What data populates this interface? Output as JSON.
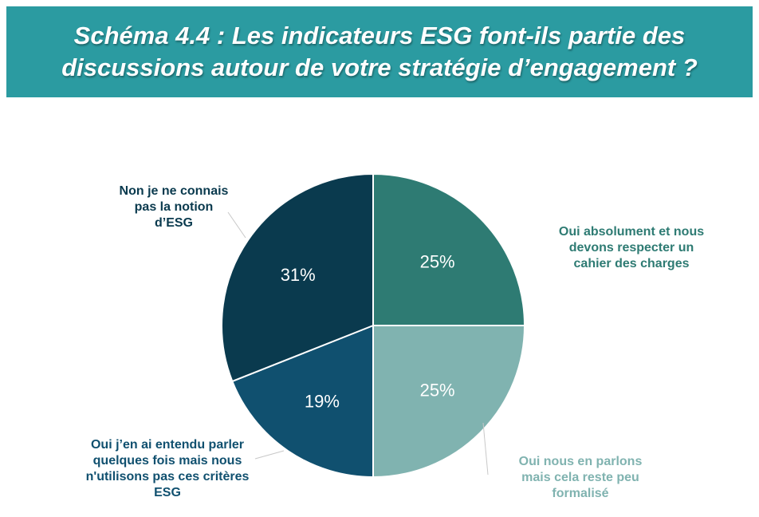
{
  "header": {
    "title_line_1": "Schéma 4.4 : Les indicateurs ESG font-ils partie des",
    "title_line_2": "discussions autour de votre stratégie d’engagement ?",
    "background_color": "#2b9ba1"
  },
  "chart_data": {
    "type": "pie",
    "title": "Schéma 4.4 : Les indicateurs ESG font-ils partie des discussions autour de votre stratégie d’engagement ?",
    "start": "12 o'clock",
    "direction": "clockwise",
    "slices": [
      {
        "label_lines": [
          "Oui absolument et nous",
          "devons respecter un",
          "cahier des charges"
        ],
        "value": 25,
        "value_label": "25%",
        "color": "#2e7b73",
        "label_color": "#2e7b73"
      },
      {
        "label_lines": [
          "Oui nous en parlons",
          "mais cela reste peu",
          "formalisé"
        ],
        "value": 25,
        "value_label": "25%",
        "color": "#80b3b0",
        "label_color": "#80b3b0"
      },
      {
        "label_lines": [
          "Oui j’en ai entendu parler",
          "quelques fois mais nous",
          "n'utilisons pas ces critères",
          "ESG"
        ],
        "value": 19,
        "value_label": "19%",
        "color": "#10506f",
        "label_color": "#10506f"
      },
      {
        "label_lines": [
          "Non je ne connais",
          "pas la notion",
          "d’ESG"
        ],
        "value": 31,
        "value_label": "31%",
        "color": "#0a3a4e",
        "label_color": "#0a3a4e"
      }
    ]
  }
}
